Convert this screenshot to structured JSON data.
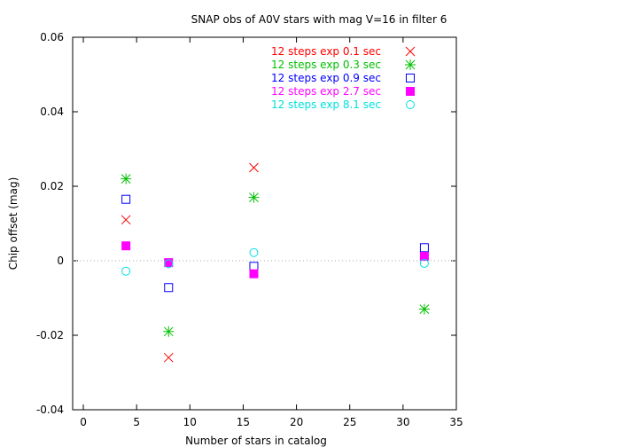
{
  "chart_data": {
    "type": "scatter",
    "title": "SNAP obs of A0V stars with mag V=16 in filter 6",
    "xlabel": "Number of stars in catalog",
    "ylabel": "Chip offset (mag)",
    "xlim": [
      -1,
      35
    ],
    "ylim": [
      -0.04,
      0.06
    ],
    "xticks": [
      "0",
      "5",
      "10",
      "15",
      "20",
      "25",
      "30",
      "35"
    ],
    "yticks": [
      "-0.04",
      "-0.02",
      "0",
      "0.02",
      "0.04",
      "0.06"
    ],
    "zero_line": true,
    "legend_position": "top-right",
    "series": [
      {
        "name": "12 steps exp 0.1 sec",
        "marker": "cross",
        "color": "#ff0000",
        "points": [
          [
            4,
            0.011
          ],
          [
            8,
            -0.026
          ],
          [
            16,
            0.025
          ]
        ]
      },
      {
        "name": "12 steps exp 0.3 sec",
        "marker": "asterisk",
        "color": "#00c000",
        "points": [
          [
            4,
            0.022
          ],
          [
            8,
            -0.019
          ],
          [
            16,
            0.017
          ],
          [
            32,
            -0.013
          ]
        ]
      },
      {
        "name": "12 steps exp 0.9 sec",
        "marker": "open-square",
        "color": "#0000ff",
        "points": [
          [
            4,
            0.0165
          ],
          [
            8,
            -0.0072
          ],
          [
            16,
            -0.0015
          ],
          [
            32,
            0.0035
          ]
        ]
      },
      {
        "name": "12 steps exp 2.7 sec",
        "marker": "filled-square",
        "color": "#ff00ff",
        "points": [
          [
            4,
            0.004
          ],
          [
            8,
            -0.0005
          ],
          [
            16,
            -0.0035
          ],
          [
            32,
            0.0012
          ]
        ]
      },
      {
        "name": "12 steps exp 8.1 sec",
        "marker": "open-circle",
        "color": "#00e0e0",
        "points": [
          [
            4,
            -0.0028
          ],
          [
            8,
            -0.0008
          ],
          [
            16,
            0.0022
          ],
          [
            32,
            -0.0007
          ]
        ]
      }
    ]
  }
}
